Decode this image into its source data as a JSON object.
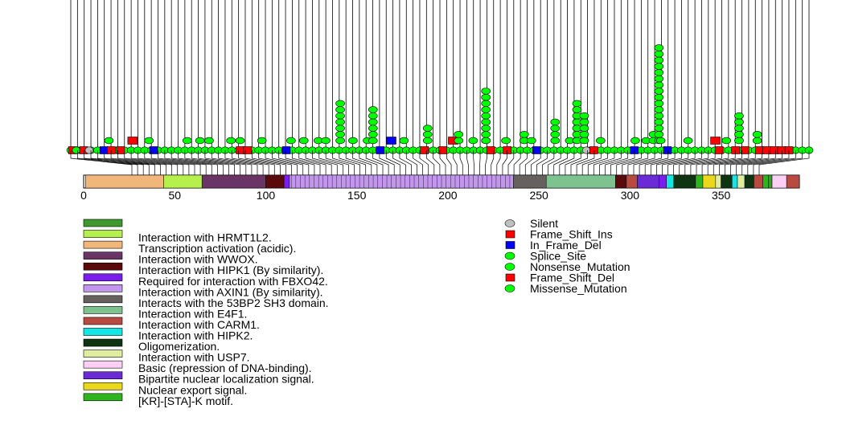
{
  "chart_data": {
    "type": "lollipop",
    "x_range": [
      0,
      393
    ],
    "x_ticks": [
      0,
      50,
      100,
      150,
      200,
      250,
      300,
      350
    ],
    "domain_legend": [
      {
        "label": "",
        "color": "#3e9a2e"
      },
      {
        "label": "Interaction with HRMT1L2.",
        "color": "#b6f04c"
      },
      {
        "label": "Transcription activation (acidic).",
        "color": "#f0b67a"
      },
      {
        "label": "Interaction with WWOX.",
        "color": "#6a3466"
      },
      {
        "label": "Interaction with HIPK1 (By similarity).",
        "color": "#5a0a0a"
      },
      {
        "label": "Required for interaction with FBXO42.",
        "color": "#7a1ef0"
      },
      {
        "label": "Interaction with AXIN1 (By similarity).",
        "color": "#c396ee"
      },
      {
        "label": "Interacts with the 53BP2 SH3 domain.",
        "color": "#66605e"
      },
      {
        "label": "Interaction with E4F1.",
        "color": "#7ec290"
      },
      {
        "label": "Interaction with CARM1.",
        "color": "#b84a40"
      },
      {
        "label": "Interaction with HIPK2.",
        "color": "#14e6e6"
      },
      {
        "label": "Oligomerization.",
        "color": "#0e3412"
      },
      {
        "label": "Interaction with USP7.",
        "color": "#e0eca0"
      },
      {
        "label": "Basic (repression of DNA-binding).",
        "color": "#fcd0f4"
      },
      {
        "label": "Bipartite nuclear localization signal.",
        "color": "#6a2ad6"
      },
      {
        "label": "Nuclear export signal.",
        "color": "#ecd81a"
      },
      {
        "label": "[KR]-[STA]-K motif.",
        "color": "#2eb41e"
      }
    ],
    "mutation_legend": [
      {
        "label": "Silent",
        "color": "#c0c0c0",
        "shape": "circle"
      },
      {
        "label": "Frame_Shift_Ins",
        "color": "#ff0000",
        "shape": "square"
      },
      {
        "label": "In_Frame_Del",
        "color": "#0000ff",
        "shape": "square"
      },
      {
        "label": "Splice_Site",
        "color": "#00ff00",
        "shape": "circle"
      },
      {
        "label": "Nonsense_Mutation",
        "color": "#00ff00",
        "shape": "circle"
      },
      {
        "label": "Frame_Shift_Del",
        "color": "#ff0000",
        "shape": "square"
      },
      {
        "label": "Missense_Mutation",
        "color": "#00ff00",
        "shape": "circle"
      }
    ],
    "domain_bar": [
      {
        "start": 1,
        "end": 44,
        "legend": 2
      },
      {
        "start": 44,
        "end": 65,
        "legend": 1
      },
      {
        "start": 65,
        "end": 100,
        "legend": 3
      },
      {
        "start": 100,
        "end": 110,
        "legend": 4
      },
      {
        "start": 110,
        "end": 113,
        "legend": 5
      },
      {
        "start": 113,
        "end": 236,
        "legend": 6
      },
      {
        "start": 236,
        "end": 254,
        "legend": 7
      },
      {
        "start": 254,
        "end": 292,
        "legend": 8
      },
      {
        "start": 292,
        "end": 298,
        "legend": 4
      },
      {
        "start": 298,
        "end": 304,
        "legend": 9
      },
      {
        "start": 304,
        "end": 316,
        "legend": 14
      },
      {
        "start": 316,
        "end": 320,
        "legend": 5
      },
      {
        "start": 320,
        "end": 324,
        "legend": 10
      },
      {
        "start": 324,
        "end": 336,
        "legend": 11
      },
      {
        "start": 336,
        "end": 340,
        "legend": 16
      },
      {
        "start": 340,
        "end": 347,
        "legend": 15
      },
      {
        "start": 347,
        "end": 350,
        "legend": 12
      },
      {
        "start": 350,
        "end": 356,
        "legend": 11
      },
      {
        "start": 356,
        "end": 359,
        "legend": 10
      },
      {
        "start": 359,
        "end": 363,
        "legend": 12
      },
      {
        "start": 363,
        "end": 368,
        "legend": 11
      },
      {
        "start": 368,
        "end": 373,
        "legend": 9
      },
      {
        "start": 373,
        "end": 376,
        "legend": 16
      },
      {
        "start": 376,
        "end": 378,
        "legend": 0
      },
      {
        "start": 378,
        "end": 386,
        "legend": 13
      },
      {
        "start": 386,
        "end": 393,
        "legend": 9
      }
    ],
    "stacks": [
      {
        "pos": 13,
        "count": 1,
        "color": "#00ff00",
        "shape": "circle"
      },
      {
        "pos": 26,
        "count": 1,
        "color": "#ff0000",
        "shape": "square"
      },
      {
        "pos": 35,
        "count": 1,
        "color": "#00ff00",
        "shape": "circle"
      },
      {
        "pos": 56,
        "count": 1,
        "color": "#00ff00",
        "shape": "circle"
      },
      {
        "pos": 63,
        "count": 1,
        "color": "#00ff00",
        "shape": "circle"
      },
      {
        "pos": 68,
        "count": 1,
        "color": "#00ff00",
        "shape": "circle"
      },
      {
        "pos": 80,
        "count": 1,
        "color": "#00ff00",
        "shape": "circle"
      },
      {
        "pos": 85,
        "count": 1,
        "color": "#00ff00",
        "shape": "circle"
      },
      {
        "pos": 97,
        "count": 1,
        "color": "#00ff00",
        "shape": "circle"
      },
      {
        "pos": 113,
        "count": 1,
        "color": "#00ff00",
        "shape": "circle"
      },
      {
        "pos": 120,
        "count": 1,
        "color": "#00ff00",
        "shape": "circle"
      },
      {
        "pos": 128,
        "count": 1,
        "color": "#00ff00",
        "shape": "circle"
      },
      {
        "pos": 132,
        "count": 1,
        "color": "#00ff00",
        "shape": "circle"
      },
      {
        "pos": 140,
        "count": 7,
        "color": "#00ff00",
        "shape": "circle"
      },
      {
        "pos": 147,
        "count": 1,
        "color": "#00ff00",
        "shape": "circle"
      },
      {
        "pos": 155,
        "count": 1,
        "color": "#00ff00",
        "shape": "circle"
      },
      {
        "pos": 158,
        "count": 6,
        "color": "#00ff00",
        "shape": "circle"
      },
      {
        "pos": 168,
        "count": 1,
        "color": "#0000ff",
        "shape": "square"
      },
      {
        "pos": 175,
        "count": 1,
        "color": "#00ff00",
        "shape": "circle"
      },
      {
        "pos": 188,
        "count": 3,
        "color": "#00ff00",
        "shape": "circle"
      },
      {
        "pos": 202,
        "count": 1,
        "color": "#ff0000",
        "shape": "square"
      },
      {
        "pos": 205,
        "count": 2,
        "color": "#00ff00",
        "shape": "circle"
      },
      {
        "pos": 213,
        "count": 1,
        "color": "#00ff00",
        "shape": "circle"
      },
      {
        "pos": 220,
        "count": 1,
        "color": "#00ff00",
        "shape": "circle"
      },
      {
        "pos": 220,
        "count": 9,
        "color": "#00ff00",
        "shape": "circle",
        "lane": 1
      },
      {
        "pos": 231,
        "count": 1,
        "color": "#00ff00",
        "shape": "circle"
      },
      {
        "pos": 241,
        "count": 2,
        "color": "#00ff00",
        "shape": "circle"
      },
      {
        "pos": 245,
        "count": 1,
        "color": "#00ff00",
        "shape": "circle"
      },
      {
        "pos": 258,
        "count": 4,
        "color": "#00ff00",
        "shape": "circle"
      },
      {
        "pos": 266,
        "count": 1,
        "color": "#00ff00",
        "shape": "circle"
      },
      {
        "pos": 270,
        "count": 7,
        "color": "#00ff00",
        "shape": "circle"
      },
      {
        "pos": 274,
        "count": 5,
        "color": "#00ff00",
        "shape": "circle"
      },
      {
        "pos": 283,
        "count": 1,
        "color": "#00ff00",
        "shape": "circle"
      },
      {
        "pos": 302,
        "count": 1,
        "color": "#00ff00",
        "shape": "circle"
      },
      {
        "pos": 308,
        "count": 1,
        "color": "#00ff00",
        "shape": "circle"
      },
      {
        "pos": 312,
        "count": 2,
        "color": "#00ff00",
        "shape": "circle"
      },
      {
        "pos": 315,
        "count": 16,
        "color": "#00ff00",
        "shape": "circle"
      },
      {
        "pos": 316,
        "count": 1,
        "color": "#00ff00",
        "shape": "circle"
      },
      {
        "pos": 331,
        "count": 1,
        "color": "#00ff00",
        "shape": "circle"
      },
      {
        "pos": 346,
        "count": 1,
        "color": "#ff0000",
        "shape": "square"
      },
      {
        "pos": 352,
        "count": 1,
        "color": "#00ff00",
        "shape": "circle"
      },
      {
        "pos": 359,
        "count": 5,
        "color": "#00ff00",
        "shape": "circle"
      },
      {
        "pos": 369,
        "count": 2,
        "color": "#00ff00",
        "shape": "circle"
      }
    ],
    "baseline": [
      {
        "pos": 1,
        "type": "square",
        "color": "#ff0000"
      },
      {
        "pos": 3,
        "type": "circle",
        "color": "#00ff00"
      },
      {
        "pos": 7,
        "type": "square",
        "color": "#ff0000"
      },
      {
        "pos": 10,
        "type": "circle",
        "color": "#c0c0c0"
      },
      {
        "pos": 18,
        "type": "square",
        "color": "#0000ff"
      },
      {
        "pos": 22,
        "type": "square",
        "color": "#ff0000"
      },
      {
        "pos": 27,
        "type": "square",
        "color": "#ff0000"
      },
      {
        "pos": 45,
        "type": "square",
        "color": "#0000ff"
      },
      {
        "pos": 92,
        "type": "square",
        "color": "#ff0000"
      },
      {
        "pos": 96,
        "type": "square",
        "color": "#ff0000"
      },
      {
        "pos": 117,
        "type": "square",
        "color": "#0000ff"
      },
      {
        "pos": 168,
        "type": "square",
        "color": "#0000ff"
      },
      {
        "pos": 192,
        "type": "square",
        "color": "#ff0000"
      },
      {
        "pos": 202,
        "type": "square",
        "color": "#ff0000"
      },
      {
        "pos": 228,
        "type": "square",
        "color": "#ff0000"
      },
      {
        "pos": 237,
        "type": "square",
        "color": "#ff0000"
      },
      {
        "pos": 253,
        "type": "square",
        "color": "#0000ff"
      },
      {
        "pos": 280,
        "type": "circle",
        "color": "#c0c0c0"
      },
      {
        "pos": 284,
        "type": "square",
        "color": "#ff0000"
      },
      {
        "pos": 306,
        "type": "square",
        "color": "#0000ff"
      },
      {
        "pos": 324,
        "type": "square",
        "color": "#0000ff"
      },
      {
        "pos": 352,
        "type": "square",
        "color": "#ff0000"
      },
      {
        "pos": 361,
        "type": "square",
        "color": "#ff0000"
      },
      {
        "pos": 366,
        "type": "square",
        "color": "#ff0000"
      },
      {
        "pos": 374,
        "type": "square",
        "color": "#ff0000"
      },
      {
        "pos": 378,
        "type": "square",
        "color": "#ff0000"
      },
      {
        "pos": 382,
        "type": "square",
        "color": "#ff0000"
      },
      {
        "pos": 386,
        "type": "square",
        "color": "#ff0000"
      },
      {
        "pos": 390,
        "type": "square",
        "color": "#ff0000"
      }
    ]
  }
}
